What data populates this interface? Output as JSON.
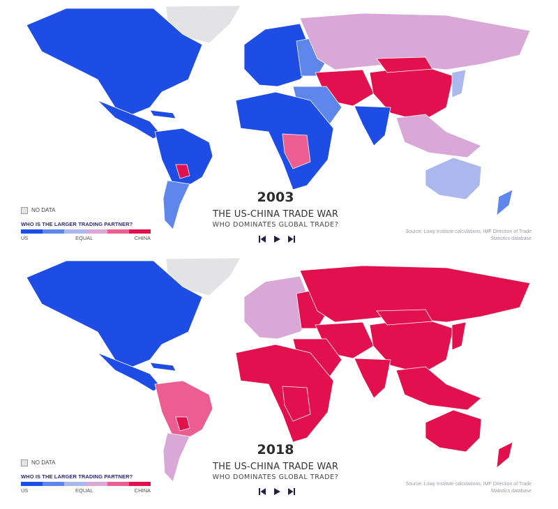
{
  "colors": {
    "us_strong": "#1e4de6",
    "us_mild": "#5f86ea",
    "equal": "#aab8ee",
    "china_mild": "#d9a8d6",
    "china_mid": "#ec5d92",
    "china_strong": "#e3104e",
    "no_data": "#e3e3e6",
    "title": "#333333"
  },
  "panels": [
    {
      "year": "2003",
      "title": "THE US-CHINA TRADE WAR",
      "subtitle": "WHO DOMINATES GLOBAL TRADE?",
      "legend": {
        "no_data_label": "NO DATA",
        "title": "WHO IS THE LARGER TRADING PARTNER?",
        "scale": [
          "#1e4de6",
          "#5f86ea",
          "#aab8ee",
          "#d9a8d6",
          "#ec5d92",
          "#e3104e"
        ],
        "left": "US",
        "middle": "EQUAL",
        "right": "CHINA"
      },
      "source": "Source: Lowy Institute calculations, IMF Direction of Trade Statistics database",
      "controls": {
        "prev": "skip-back-icon",
        "play": "play-icon",
        "next": "skip-forward-icon"
      },
      "regions": {
        "greenland": "no_data",
        "north_america": "us_strong",
        "central_america": "us_strong",
        "caribbean": "us_strong",
        "south_america": "us_strong",
        "paraguay": "china_strong",
        "southern_cone": "us_mild",
        "europe": "us_strong",
        "eastern_europe": "us_mild",
        "russia": "china_mild",
        "central_asia": "china_strong",
        "china": "china_strong",
        "mongolia": "china_strong",
        "india": "us_strong",
        "middle_east": "us_mild",
        "southeast_asia": "china_mild",
        "japan": "equal",
        "africa": "us_strong",
        "central_africa": "china_mid",
        "australia": "equal",
        "new_zealand": "us_mild"
      }
    },
    {
      "year": "2018",
      "title": "THE US-CHINA TRADE WAR",
      "subtitle": "WHO DOMINATES GLOBAL TRADE?",
      "legend": {
        "no_data_label": "NO DATA",
        "title": "WHO IS THE LARGER TRADING PARTNER?",
        "scale": [
          "#1e4de6",
          "#5f86ea",
          "#aab8ee",
          "#d9a8d6",
          "#ec5d92",
          "#e3104e"
        ],
        "left": "US",
        "middle": "EQUAL",
        "right": "CHINA"
      },
      "source": "Source: Lowy Institute calculations, IMF Direction of Trade Statistics database",
      "controls": {
        "prev": "skip-back-icon",
        "play": "play-icon",
        "next": "skip-forward-icon"
      },
      "regions": {
        "greenland": "no_data",
        "north_america": "us_strong",
        "central_america": "us_strong",
        "caribbean": "us_strong",
        "south_america": "china_mid",
        "paraguay": "china_strong",
        "southern_cone": "china_mild",
        "europe": "china_mild",
        "eastern_europe": "china_strong",
        "russia": "china_strong",
        "central_asia": "china_strong",
        "china": "china_strong",
        "mongolia": "china_strong",
        "india": "china_strong",
        "middle_east": "china_strong",
        "southeast_asia": "china_strong",
        "japan": "china_strong",
        "africa": "china_strong",
        "central_africa": "china_strong",
        "australia": "china_strong",
        "new_zealand": "china_strong"
      }
    }
  ]
}
